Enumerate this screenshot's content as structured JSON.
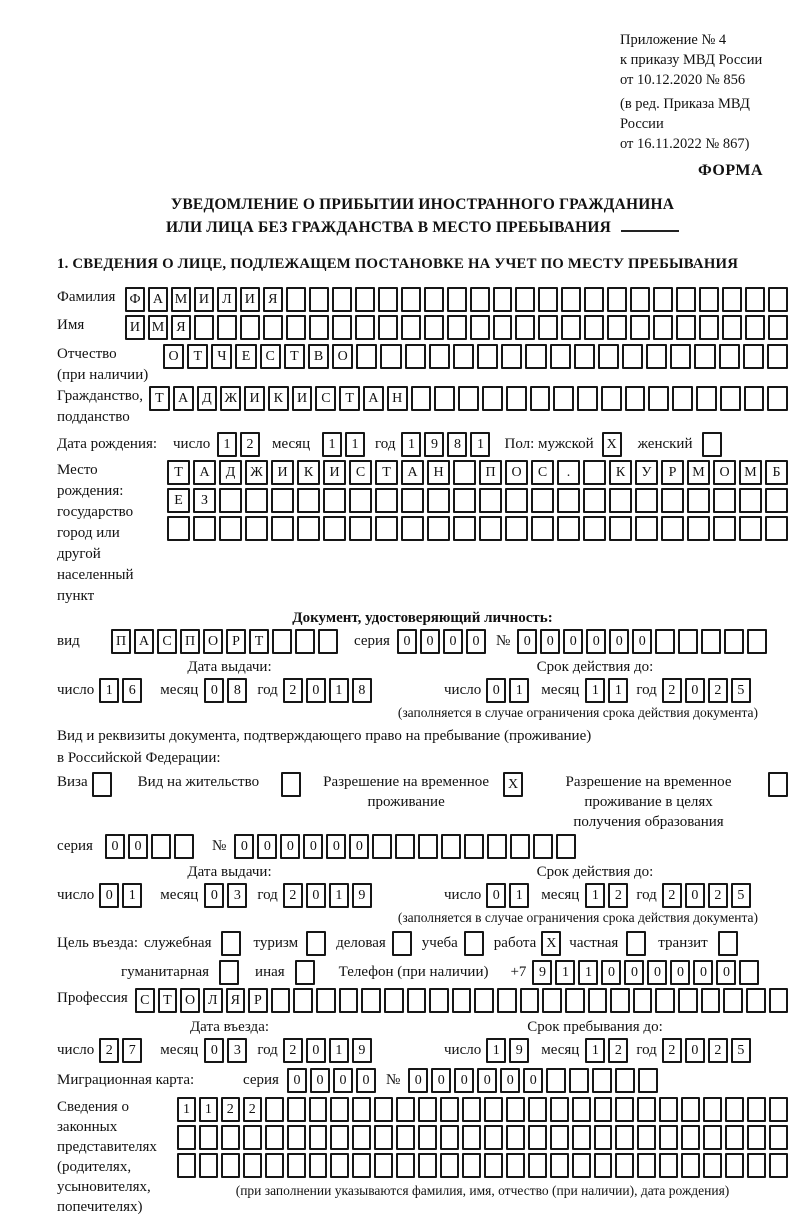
{
  "header": {
    "lines": [
      "Приложение № 4",
      "к приказу МВД России",
      "от 10.12.2020 № 856",
      "(в ред. Приказа МВД России",
      "от 16.11.2022 № 867)"
    ],
    "form_label": "ФОРМА"
  },
  "title": {
    "line1": "УВЕДОМЛЕНИЕ О ПРИБЫТИИ ИНОСТРАННОГО ГРАЖДАНИНА",
    "line2": "ИЛИ ЛИЦА БЕЗ ГРАЖДАНСТВА В МЕСТО ПРЕБЫВАНИЯ"
  },
  "section1": {
    "heading": "1. СВЕДЕНИЯ О ЛИЦЕ, ПОДЛЕЖАЩЕМ ПОСТАНОВКЕ НА УЧЕТ ПО МЕСТУ ПРЕБЫВАНИЯ"
  },
  "date_labels": {
    "day": "число",
    "month": "месяц",
    "year": "год"
  },
  "fields": {
    "surname": {
      "label": "Фамилия",
      "cells": {
        "t": "ФАМИЛИЯ",
        "n": 29
      }
    },
    "name": {
      "label": "Имя",
      "cells": {
        "t": "ИМЯ",
        "n": 29
      }
    },
    "patronymic": {
      "label1": "Отчество",
      "label2": "(при наличии)",
      "cells": {
        "t": "ОТЧЕСТВО",
        "n": 26
      }
    },
    "citizenship": {
      "label1": "Гражданство,",
      "label2": "подданство",
      "cells": {
        "t": "ТАДЖИКИСТАН",
        "n": 27
      }
    },
    "birth_date": {
      "label": "Дата рождения:",
      "day": "12",
      "month": "11",
      "year": "1981",
      "sex_label": "Пол: мужской",
      "male": "X",
      "female_label": "женский",
      "female": ""
    },
    "birth_place": {
      "labels": [
        "Место рождения:",
        "государство",
        "город или другой",
        "населенный пункт"
      ],
      "row1": {
        "t": "ТАДЖИКИСТАН ПОС. КУРМОМБ",
        "n": 24
      },
      "row2": {
        "t": "ЕЗ",
        "n": 24
      },
      "row3": {
        "t": "",
        "n": 24
      }
    }
  },
  "identity_doc": {
    "heading": "Документ, удостоверяющий личность:",
    "vid_label": "вид",
    "vid": {
      "t": "ПАСПОРТ",
      "n": 10
    },
    "seriya_label": "серия",
    "seriya": {
      "t": "0000",
      "n": 4
    },
    "num_label": "№",
    "num": {
      "t": "000000",
      "n": 11
    },
    "issue_label": "Дата выдачи:",
    "issue": {
      "day": "16",
      "month": "08",
      "year": "2018"
    },
    "valid_label": "Срок действия до:",
    "valid": {
      "day": "01",
      "month": "11",
      "year": "2025"
    },
    "note": "(заполняется в случае ограничения срока действия документа)"
  },
  "residence_doc": {
    "line1": "Вид и реквизиты документа, подтверждающего право на пребывание (проживание)",
    "line2": "в Российской Федерации:",
    "visa_label": "Виза",
    "visa": "",
    "permit_label": "Вид на жительство",
    "permit": "",
    "temp_label1": "Разрешение на временное",
    "temp_label2": "проживание",
    "temp": "X",
    "edu_label1": "Разрешение на временное",
    "edu_label2": "проживание в целях",
    "edu_label3": "получения образования",
    "edu": "",
    "seriya_label": "серия",
    "seriya": {
      "t": "00",
      "n": 4
    },
    "num_label": "№",
    "num": {
      "t": "000000",
      "n": 15
    },
    "issue_label": "Дата выдачи:",
    "issue": {
      "day": "01",
      "month": "03",
      "year": "2019"
    },
    "valid_label": "Срок действия до:",
    "valid": {
      "day": "01",
      "month": "12",
      "year": "2025"
    },
    "note": "(заполняется в случае ограничения срока действия документа)"
  },
  "visit_purpose": {
    "label": "Цель въезда:",
    "official_label": "служебная",
    "official": "",
    "tourism_label": "туризм",
    "tourism": "",
    "business_label": "деловая",
    "business": "",
    "study_label": "учеба",
    "study": "",
    "work_label": "работа",
    "work": "X",
    "private_label": "частная",
    "private": "",
    "transit_label": "транзит",
    "transit": "",
    "humanitarian_label": "гуманитарная",
    "humanitarian": "",
    "other_label": "иная",
    "other": "",
    "phone_label": "Телефон (при наличии)",
    "phone_prefix": "+7",
    "phone": {
      "t": "911000000",
      "n": 10
    }
  },
  "profession": {
    "label": "Профессия",
    "cells": {
      "t": "СТОЛЯР",
      "n": 29
    }
  },
  "entry": {
    "label": "Дата въезда:",
    "day": "27",
    "month": "03",
    "year": "2019"
  },
  "stay": {
    "label": "Срок пребывания до:",
    "day": "19",
    "month": "12",
    "year": "2025"
  },
  "migration_card": {
    "label": "Миграционная карта:",
    "seriya_label": "серия",
    "seriya": {
      "t": "0000",
      "n": 4
    },
    "num_label": "№",
    "num": {
      "t": "000000",
      "n": 11
    }
  },
  "representatives": {
    "labels": [
      "Сведения о",
      "законных",
      "представителях",
      "(родителях,",
      "усыновителях,",
      "попечителях)"
    ],
    "row1": {
      "t": "1122",
      "n": 28
    },
    "row2": {
      "t": "",
      "n": 28
    },
    "row3": {
      "t": "",
      "n": 28
    },
    "note": "(при заполнении указываются фамилия, имя, отчество (при наличии), дата рождения)"
  }
}
